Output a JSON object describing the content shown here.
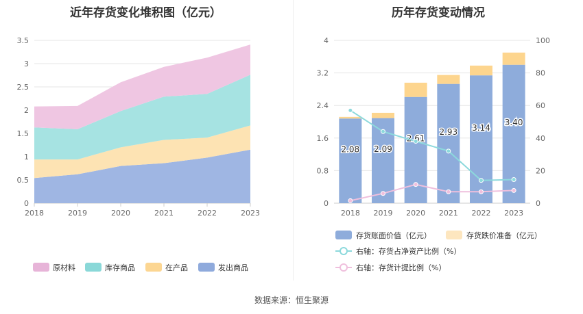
{
  "source_label": "数据来源：恒生聚源",
  "chart_data": [
    {
      "type": "area",
      "stacked": true,
      "title": "近年存货变化堆积图（亿元）",
      "categories": [
        "2018",
        "2019",
        "2020",
        "2021",
        "2022",
        "2023"
      ],
      "ylim": [
        0,
        3.5
      ],
      "yticks": [
        "0",
        "0.5",
        "1",
        "1.5",
        "2",
        "2.5",
        "3",
        "3.5"
      ],
      "grid": true,
      "legend_position": "bottom",
      "series": [
        {
          "name": "发出商品",
          "color": "#9fb6e3",
          "legend_color": "#8faadc",
          "values": [
            0.54,
            0.62,
            0.8,
            0.86,
            0.98,
            1.15
          ]
        },
        {
          "name": "在产品",
          "color": "#fde3b3",
          "legend_color": "#fcd692",
          "values": [
            0.4,
            0.32,
            0.4,
            0.5,
            0.43,
            0.52
          ]
        },
        {
          "name": "库存商品",
          "color": "#a6e3e2",
          "legend_color": "#8ad8d8",
          "values": [
            0.69,
            0.65,
            0.78,
            0.93,
            0.94,
            1.09
          ]
        },
        {
          "name": "原材料",
          "color": "#efc6e2",
          "legend_color": "#e7b4d8",
          "values": [
            0.45,
            0.5,
            0.62,
            0.64,
            0.78,
            0.65
          ]
        }
      ]
    },
    {
      "type": "bar",
      "stacked": true,
      "title": "历年存货变动情况",
      "categories": [
        "2018",
        "2019",
        "2020",
        "2021",
        "2022",
        "2023"
      ],
      "ylim_left": [
        0,
        4
      ],
      "ylim_right": [
        0,
        100
      ],
      "yticks_left": [
        "0",
        "0.8",
        "1.6",
        "2.4",
        "3.2",
        "4"
      ],
      "yticks_right": [
        "0",
        "20",
        "40",
        "60",
        "80",
        "100"
      ],
      "grid": true,
      "legend_position": "bottom",
      "series": [
        {
          "name": "存货账面价值（亿元）",
          "axis": "left",
          "kind": "bar",
          "color": "#8eacdb",
          "values": [
            2.08,
            2.09,
            2.61,
            2.93,
            3.14,
            3.4
          ],
          "labels": [
            "2.08",
            "2.09",
            "2.61",
            "2.93",
            "3.14",
            "3.40"
          ]
        },
        {
          "name": "存货跌价准备（亿元）",
          "axis": "left",
          "kind": "bar",
          "color": "#fdd58e",
          "legend_color": "#fde6bf",
          "values": [
            0.04,
            0.13,
            0.35,
            0.22,
            0.24,
            0.3
          ]
        },
        {
          "name": "右轴：存货占净资产比例（%）",
          "axis": "right",
          "kind": "line",
          "color": "#8cd9dc",
          "values": [
            57,
            44,
            38,
            32,
            14,
            14.5
          ]
        },
        {
          "name": "右轴：存货计提比例（%）",
          "axis": "right",
          "kind": "line",
          "color": "#efbfdd",
          "values": [
            1.5,
            6,
            11.5,
            7,
            7,
            7.8
          ]
        }
      ]
    }
  ]
}
